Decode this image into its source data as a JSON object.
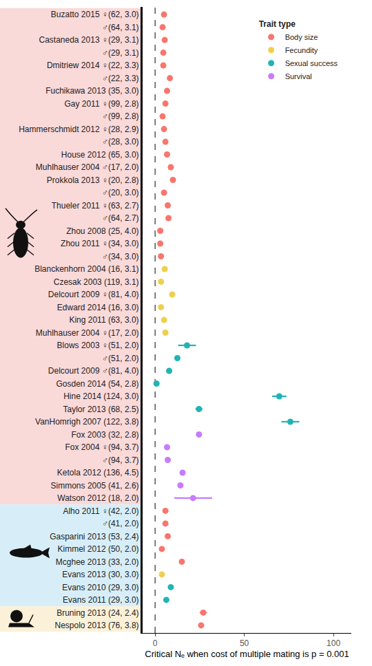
{
  "chart_data": {
    "type": "scatter",
    "xlabel": "Critical Nₑ when cost of multiple mating is p = 0.001",
    "legend_title": "Trait type",
    "legend": "top right",
    "grid": false,
    "xlim": [
      -7,
      110
    ],
    "xticks": [
      0,
      50,
      100
    ],
    "categories": [
      "Buzatto 2015 ♀(62, 3.0)",
      "♂(64, 3.1)",
      "Castaneda 2013 ♀(29, 3.1)",
      "♂(29, 3.1)",
      "Dmitriew 2014 ♀(22, 3.3)",
      "♂(22, 3.3)",
      "Fuchikawa 2013 (35, 3.0)",
      "Gay 2011 ♀(99, 2.8)",
      "♂(99, 2.8)",
      "Hammerschmidt 2012 ♀(28, 2.9)",
      "♂(28, 3.0)",
      "House 2012 (65, 3.0)",
      "Muhlhauser 2004 ♂(17, 2.0)",
      "Prokkola 2013 ♀(20, 2.8)",
      "♂(20, 3.0)",
      "Thueler 2011 ♀(63, 2.7)",
      "♂(64, 2.7)",
      "Zhou 2008 (25, 4.0)",
      "Zhou 2011 ♀(34, 3.0)",
      "♂(34, 3.0)",
      "Blanckenhorn 2004 (16, 3.1)",
      "Czesak 2003 (119, 3.1)",
      "Delcourt 2009 ♀(81, 4.0)",
      "Edward 2014 (16, 3.0)",
      "King 2011 (63, 3.0)",
      "Muhlhauser 2004 ♀(17, 2.0)",
      "Blows 2003 ♀(51, 2.0)",
      "♂(51, 2.0)",
      "Delcourt 2009 ♂(81, 4.0)",
      "Gosden 2014 (54, 2.8)",
      "Hine 2014 (124, 3.0)",
      "Taylor 2013 (68, 2.5)",
      "VanHomrigh 2007 (122, 3.8)",
      "Fox 2003 (32, 2.8)",
      "Fox 2004 ♀(94, 3.7)",
      "♂(94, 3.7)",
      "Ketola 2012 (136, 4.5)",
      "Simmons 2005 (41, 2.6)",
      "Watson 2012 (18, 2.0)",
      "Alho 2011 ♀(42, 2.0)",
      "♂(41, 2.0)",
      "Gasparini 2013 (53, 2.4)",
      "Kimmel 2012 (50, 2.0)",
      "Mcghee 2013 (33, 2.0)",
      "Evans 2013 (30, 3.0)",
      "Evans 2010 (29, 3.0)",
      "Evans 2011 (29, 3.0)",
      "Bruning 2013 (24, 2.4)",
      "Nespolo 2013 (76, 3.8)"
    ],
    "series": [
      {
        "name": "Body size",
        "color": "#F8766D",
        "values": [
          5,
          4.2,
          5.4,
          4.6,
          4.6,
          8.3,
          6.7,
          5.8,
          4.2,
          5,
          5.8,
          6.7,
          8.8,
          10,
          5,
          7.1,
          7.5,
          2.9,
          2.9,
          3.3,
          null,
          null,
          null,
          null,
          null,
          null,
          null,
          null,
          null,
          null,
          null,
          null,
          null,
          null,
          null,
          null,
          null,
          null,
          null,
          5.8,
          5.8,
          7.1,
          3.8,
          15,
          null,
          null,
          null,
          27,
          25.8
        ],
        "error_minus": [
          null,
          null,
          null,
          null,
          null,
          null,
          null,
          null,
          null,
          null,
          null,
          null,
          null,
          null,
          null,
          null,
          null,
          null,
          null,
          null,
          null,
          null,
          null,
          null,
          null,
          null,
          null,
          null,
          null,
          null,
          null,
          null,
          null,
          null,
          null,
          null,
          null,
          null,
          null,
          null,
          null,
          null,
          null,
          null,
          null,
          null,
          null,
          2,
          null
        ],
        "error_plus": [
          null,
          null,
          null,
          null,
          null,
          null,
          null,
          null,
          null,
          null,
          null,
          null,
          null,
          null,
          null,
          null,
          null,
          null,
          null,
          null,
          null,
          null,
          null,
          null,
          null,
          null,
          null,
          null,
          null,
          null,
          null,
          null,
          null,
          null,
          null,
          null,
          null,
          null,
          null,
          null,
          null,
          null,
          null,
          null,
          null,
          null,
          null,
          2,
          null
        ]
      },
      {
        "name": "Fecundity",
        "color": "#EFD04E",
        "values": [
          null,
          null,
          null,
          null,
          null,
          null,
          null,
          null,
          null,
          null,
          null,
          null,
          null,
          null,
          null,
          null,
          null,
          null,
          null,
          null,
          5.4,
          3.3,
          9.6,
          3.3,
          5,
          5.8,
          null,
          null,
          null,
          null,
          null,
          null,
          null,
          null,
          null,
          null,
          null,
          null,
          null,
          null,
          null,
          null,
          null,
          null,
          3.8,
          null,
          null,
          null,
          null
        ]
      },
      {
        "name": "Sexual success",
        "color": "#22B3B5",
        "values": [
          null,
          null,
          null,
          null,
          null,
          null,
          null,
          null,
          null,
          null,
          null,
          null,
          null,
          null,
          null,
          null,
          null,
          null,
          null,
          null,
          null,
          null,
          null,
          null,
          null,
          null,
          17.9,
          12.5,
          7.9,
          0.8,
          69.6,
          24.6,
          75.8,
          null,
          null,
          null,
          null,
          null,
          null,
          null,
          null,
          null,
          null,
          null,
          null,
          8.8,
          6.3,
          null,
          null
        ],
        "error_minus": [
          null,
          null,
          null,
          null,
          null,
          null,
          null,
          null,
          null,
          null,
          null,
          null,
          null,
          null,
          null,
          null,
          null,
          null,
          null,
          null,
          null,
          null,
          null,
          null,
          null,
          null,
          5,
          1.5,
          1,
          1,
          4,
          2,
          5,
          null,
          null,
          null,
          null,
          null,
          null,
          null,
          null,
          null,
          null,
          null,
          null,
          null,
          null,
          null,
          null
        ],
        "error_plus": [
          null,
          null,
          null,
          null,
          null,
          null,
          null,
          null,
          null,
          null,
          null,
          null,
          null,
          null,
          null,
          null,
          null,
          null,
          null,
          null,
          null,
          null,
          null,
          null,
          null,
          null,
          5,
          1.5,
          1,
          1,
          4,
          2,
          5,
          null,
          null,
          null,
          null,
          null,
          null,
          null,
          null,
          null,
          null,
          null,
          null,
          null,
          null,
          null,
          null
        ]
      },
      {
        "name": "Survival",
        "color": "#C77CFF",
        "values": [
          null,
          null,
          null,
          null,
          null,
          null,
          null,
          null,
          null,
          null,
          null,
          null,
          null,
          null,
          null,
          null,
          null,
          null,
          null,
          null,
          null,
          null,
          null,
          null,
          null,
          null,
          null,
          null,
          null,
          null,
          null,
          null,
          null,
          24.6,
          6.7,
          7.1,
          15.4,
          14.2,
          21.3,
          null,
          null,
          null,
          null,
          null,
          null,
          null,
          null,
          null,
          null
        ],
        "error_minus": [
          null,
          null,
          null,
          null,
          null,
          null,
          null,
          null,
          null,
          null,
          null,
          null,
          null,
          null,
          null,
          null,
          null,
          null,
          null,
          null,
          null,
          null,
          null,
          null,
          null,
          null,
          null,
          null,
          null,
          null,
          null,
          null,
          null,
          null,
          null,
          null,
          null,
          null,
          10.5,
          null,
          null,
          null,
          null,
          null,
          null,
          null,
          null,
          null,
          null
        ],
        "error_plus": [
          null,
          null,
          null,
          null,
          null,
          null,
          null,
          null,
          null,
          null,
          null,
          null,
          null,
          null,
          null,
          null,
          null,
          null,
          null,
          null,
          null,
          null,
          null,
          null,
          null,
          null,
          null,
          null,
          null,
          null,
          null,
          null,
          null,
          null,
          null,
          null,
          null,
          null,
          10.7,
          null,
          null,
          null,
          null,
          null,
          null,
          null,
          null,
          null,
          null
        ]
      }
    ]
  }
}
